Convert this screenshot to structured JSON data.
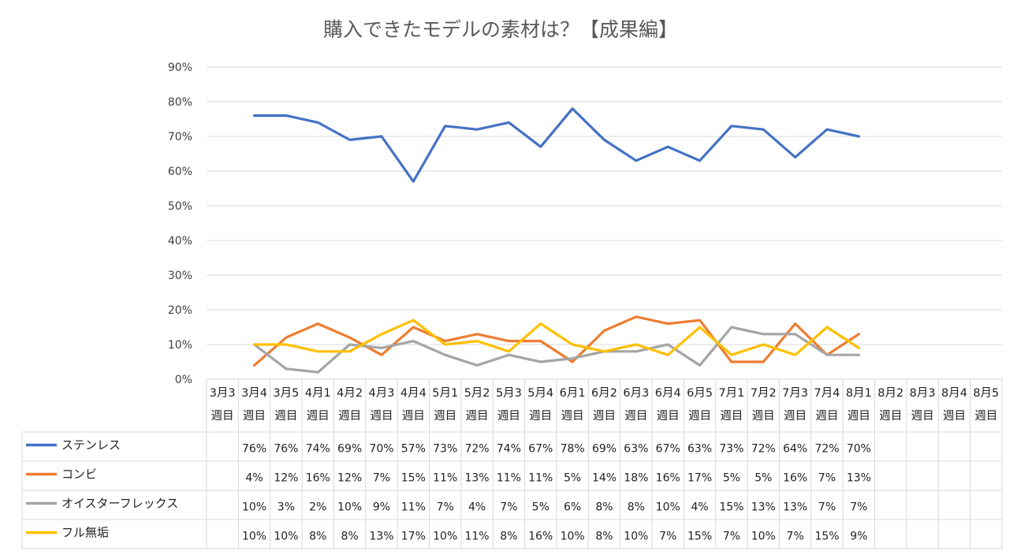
{
  "chart_data": {
    "type": "line",
    "title": "購入できたモデルの素材は？【成果編】",
    "ylim": [
      0,
      90
    ],
    "yticks": [
      "0%",
      "10%",
      "20%",
      "30%",
      "40%",
      "50%",
      "60%",
      "70%",
      "80%",
      "90%"
    ],
    "categories": [
      [
        "3月3",
        "週目"
      ],
      [
        "3月4",
        "週目"
      ],
      [
        "3月5",
        "週目"
      ],
      [
        "4月1",
        "週目"
      ],
      [
        "4月2",
        "週目"
      ],
      [
        "4月3",
        "週目"
      ],
      [
        "4月4",
        "週目"
      ],
      [
        "5月1",
        "週目"
      ],
      [
        "5月2",
        "週目"
      ],
      [
        "5月3",
        "週目"
      ],
      [
        "5月4",
        "週目"
      ],
      [
        "6月1",
        "週目"
      ],
      [
        "6月2",
        "週目"
      ],
      [
        "6月3",
        "週目"
      ],
      [
        "6月4",
        "週目"
      ],
      [
        "6月5",
        "週目"
      ],
      [
        "7月1",
        "週目"
      ],
      [
        "7月2",
        "週目"
      ],
      [
        "7月3",
        "週目"
      ],
      [
        "7月4",
        "週目"
      ],
      [
        "8月1",
        "週目"
      ],
      [
        "8月2",
        "週目"
      ],
      [
        "8月3",
        "週目"
      ],
      [
        "8月4",
        "週目"
      ],
      [
        "8月5",
        "週目"
      ]
    ],
    "grid": true,
    "legend": "data-table",
    "series": [
      {
        "name": "ステンレス",
        "color": "#4472C4",
        "values": [
          null,
          76,
          76,
          74,
          69,
          70,
          57,
          73,
          72,
          74,
          67,
          78,
          69,
          63,
          67,
          63,
          73,
          72,
          64,
          72,
          70,
          null,
          null,
          null,
          null
        ]
      },
      {
        "name": "コンビ",
        "color": "#ED7D31",
        "values": [
          null,
          4,
          12,
          16,
          12,
          7,
          15,
          11,
          13,
          11,
          11,
          5,
          14,
          18,
          16,
          17,
          5,
          5,
          16,
          7,
          13,
          null,
          null,
          null,
          null
        ]
      },
      {
        "name": "オイスターフレックス",
        "color": "#A5A5A5",
        "values": [
          null,
          10,
          3,
          2,
          10,
          9,
          11,
          7,
          4,
          7,
          5,
          6,
          8,
          8,
          10,
          4,
          15,
          13,
          13,
          7,
          7,
          null,
          null,
          null,
          null
        ]
      },
      {
        "name": "フル無垢",
        "color": "#FFC000",
        "values": [
          null,
          10,
          10,
          8,
          8,
          13,
          17,
          10,
          11,
          8,
          16,
          10,
          8,
          10,
          7,
          15,
          7,
          10,
          7,
          15,
          9,
          null,
          null,
          null,
          null
        ]
      }
    ]
  }
}
